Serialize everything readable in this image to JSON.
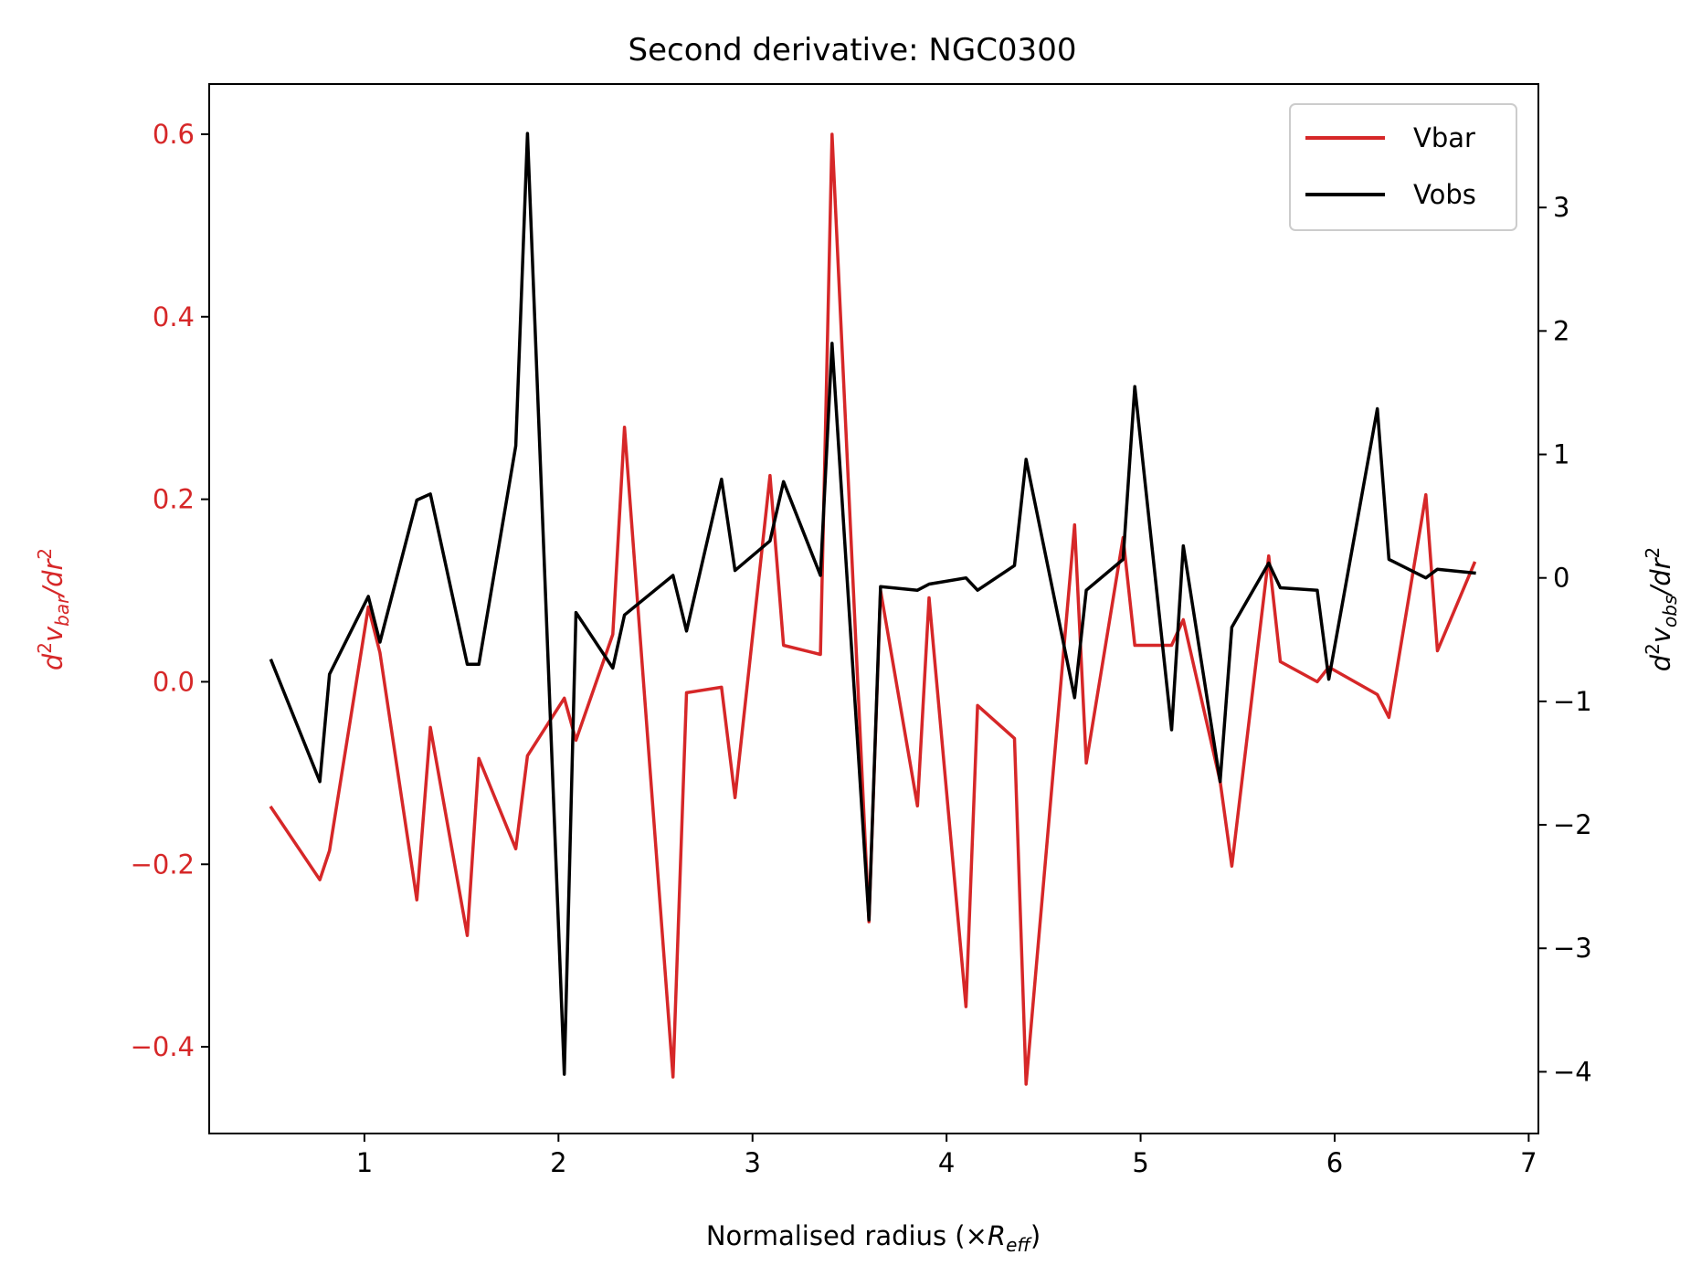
{
  "chart_data": {
    "type": "line",
    "title": "Second derivative: NGC0300",
    "xlabel": "Normalised radius (×R_eff)",
    "xlabel_parts": {
      "prefix": "Normalised radius (×",
      "var": "R",
      "sub": "eff",
      "suffix": ")"
    },
    "ylabel_left": {
      "pre": "d",
      "sup1": "2",
      "v": "v",
      "sub": "bar",
      "mid": "/dr",
      "sup2": "2"
    },
    "ylabel_right": {
      "pre": "d",
      "sup1": "2",
      "v": "v",
      "sub": "obs",
      "mid": "/dr",
      "sup2": "2"
    },
    "xlim": [
      0.2,
      7.05
    ],
    "ylim_left": [
      -0.495,
      0.655
    ],
    "ylim_right": [
      -4.5,
      4.0
    ],
    "xticks": [
      1,
      2,
      3,
      4,
      5,
      6,
      7
    ],
    "xtick_labels": [
      "1",
      "2",
      "3",
      "4",
      "5",
      "6",
      "7"
    ],
    "yticks_left": [
      -0.4,
      -0.2,
      0.0,
      0.2,
      0.4,
      0.6
    ],
    "ytick_labels_left": [
      "−0.4",
      "−0.2",
      "0.0",
      "0.2",
      "0.4",
      "0.6"
    ],
    "yticks_right": [
      -4,
      -3,
      -2,
      -1,
      0,
      1,
      2,
      3
    ],
    "ytick_labels_right": [
      "−4",
      "−3",
      "−2",
      "−1",
      "0",
      "1",
      "2",
      "3"
    ],
    "legend_position": "top-right",
    "grid": false,
    "series": [
      {
        "name": "Vbar",
        "color": "#d62728",
        "axis": "left",
        "x": [
          0.52,
          0.77,
          0.82,
          1.02,
          1.08,
          1.27,
          1.34,
          1.53,
          1.59,
          1.78,
          1.84,
          2.03,
          2.09,
          2.28,
          2.34,
          2.59,
          2.66,
          2.84,
          2.91,
          3.09,
          3.16,
          3.35,
          3.41,
          3.6,
          3.66,
          3.85,
          3.91,
          4.1,
          4.16,
          4.35,
          4.41,
          4.66,
          4.72,
          4.91,
          4.97,
          5.16,
          5.22,
          5.41,
          5.47,
          5.66,
          5.72,
          5.91,
          5.97,
          6.22,
          6.28,
          6.47,
          6.53,
          6.72
        ],
        "values": [
          -0.138,
          -0.217,
          -0.185,
          0.082,
          0.032,
          -0.239,
          -0.05,
          -0.278,
          -0.084,
          -0.183,
          -0.081,
          -0.018,
          -0.064,
          0.052,
          0.279,
          -0.433,
          -0.012,
          -0.006,
          -0.127,
          0.226,
          0.04,
          0.03,
          0.6,
          -0.263,
          0.1,
          -0.136,
          0.092,
          -0.356,
          -0.026,
          -0.062,
          -0.441,
          0.172,
          -0.089,
          0.158,
          0.04,
          0.04,
          0.068,
          -0.109,
          -0.202,
          0.138,
          0.022,
          0.0,
          0.016,
          -0.014,
          -0.039,
          0.205,
          0.034,
          0.13
        ]
      },
      {
        "name": "Vobs",
        "color": "#000000",
        "axis": "right",
        "x": [
          0.52,
          0.77,
          0.82,
          1.02,
          1.08,
          1.27,
          1.34,
          1.53,
          1.59,
          1.78,
          1.84,
          2.03,
          2.09,
          2.28,
          2.34,
          2.59,
          2.66,
          2.84,
          2.91,
          3.09,
          3.16,
          3.35,
          3.41,
          3.6,
          3.66,
          3.85,
          3.91,
          4.1,
          4.16,
          4.35,
          4.41,
          4.66,
          4.72,
          4.91,
          4.97,
          5.16,
          5.22,
          5.41,
          5.47,
          5.66,
          5.72,
          5.91,
          5.97,
          6.22,
          6.28,
          6.47,
          6.53,
          6.72
        ],
        "values": [
          -0.67,
          -1.65,
          -0.78,
          -0.15,
          -0.52,
          0.63,
          0.68,
          -0.7,
          -0.7,
          1.07,
          3.6,
          -4.02,
          -0.28,
          -0.73,
          -0.3,
          0.02,
          -0.43,
          0.8,
          0.06,
          0.3,
          0.78,
          0.02,
          1.9,
          -2.77,
          -0.07,
          -0.1,
          -0.05,
          0.0,
          -0.1,
          0.1,
          0.96,
          -0.97,
          -0.1,
          0.15,
          1.55,
          -1.23,
          0.26,
          -1.65,
          -0.4,
          0.12,
          -0.08,
          -0.1,
          -0.82,
          1.37,
          0.15,
          0.0,
          0.07,
          0.04
        ]
      }
    ]
  }
}
